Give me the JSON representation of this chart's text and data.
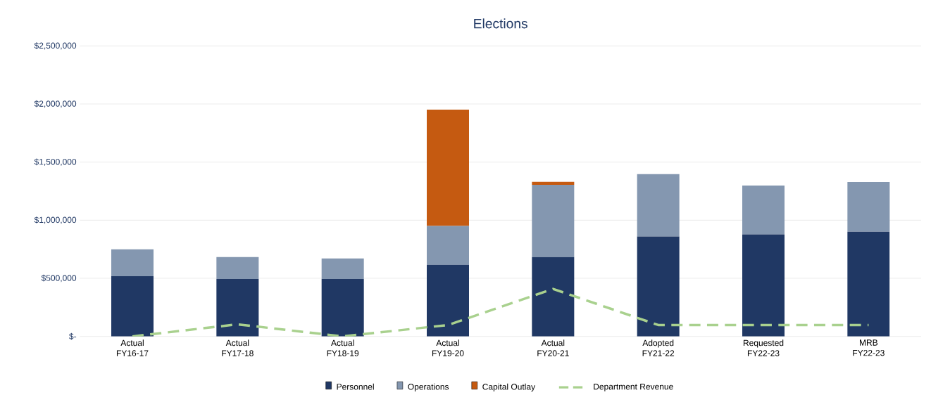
{
  "chart_data": {
    "type": "bar",
    "title": "Elections",
    "stacked": true,
    "categories": [
      "Actual FY16-17",
      "Actual FY17-18",
      "Actual FY18-19",
      "Actual FY19-20",
      "Actual FY20-21",
      "Adopted FY21-22",
      "Requested FY22-23",
      "MRB FY22-23"
    ],
    "series": [
      {
        "name": "Personnel",
        "color": "#203864",
        "values": [
          518000,
          494000,
          494000,
          616000,
          683000,
          860000,
          878000,
          902000
        ]
      },
      {
        "name": "Operations",
        "color": "#8497b0",
        "values": [
          232000,
          189000,
          177000,
          335000,
          622000,
          536000,
          421000,
          427000
        ]
      },
      {
        "name": "Capital Outlay",
        "color": "#c55a11",
        "values": [
          0,
          0,
          0,
          1000000,
          25000,
          0,
          0,
          0
        ]
      },
      {
        "name": "Department Revenue",
        "type": "line",
        "color": "#a9d18e",
        "line_style": "dashed",
        "values": [
          0,
          104000,
          0,
          98000,
          409000,
          98000,
          98000,
          98000
        ]
      }
    ],
    "ylim": [
      0,
      2500000
    ],
    "yticks": [
      {
        "value": 0,
        "label": "$-"
      },
      {
        "value": 500000,
        "label": "$500,000"
      },
      {
        "value": 1000000,
        "label": "$1,000,000"
      },
      {
        "value": 1500000,
        "label": "$1,500,000"
      },
      {
        "value": 2000000,
        "label": "$2,000,000"
      },
      {
        "value": 2500000,
        "label": "$2,500,000"
      }
    ],
    "grid": "y",
    "legend": "bottom"
  }
}
